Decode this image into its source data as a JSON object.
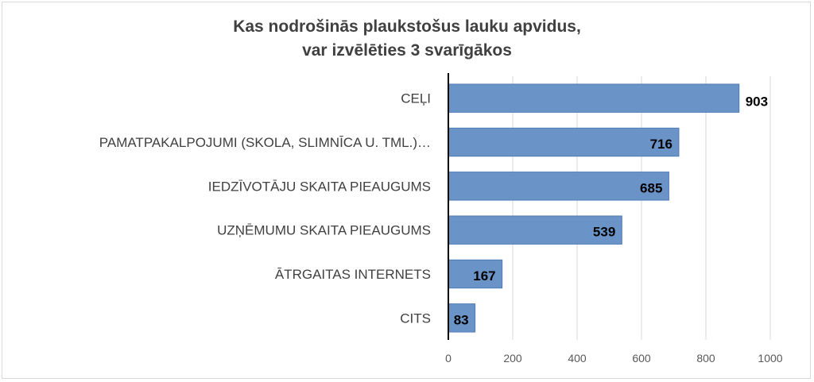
{
  "chart_data": {
    "type": "bar",
    "orientation": "horizontal",
    "title_lines": [
      "Kas nodrošinās plaukstošus lauku apvidus,",
      "var izvēlēties 3 svarīgākos"
    ],
    "categories": [
      "CEĻI",
      "PAMATPAKALPOJUMI (SKOLA, SLIMNĪCA U. TML.)…",
      "IEDZĪVOTĀJU SKAITA PIEAUGUMS",
      "UZŅĒMUMU  SKAITA PIEAUGUMS",
      "ĀTRGAITAS INTERNETS",
      "CITS"
    ],
    "values": [
      903,
      716,
      685,
      539,
      167,
      83
    ],
    "data_labels": [
      "903",
      "716",
      "685",
      "539",
      "167",
      "83"
    ],
    "xlim": [
      0,
      1000
    ],
    "x_ticks": [
      0,
      200,
      400,
      600,
      800,
      1000
    ],
    "x_tick_labels": [
      "0",
      "200",
      "400",
      "600",
      "800",
      "1000"
    ],
    "grid": true,
    "legend": "none",
    "colors": {
      "bar": "#6a93c8",
      "bar_edge": "#4f7bb5",
      "grid": "#d9d9d9",
      "axis": "#000000",
      "title": "#404040"
    }
  }
}
